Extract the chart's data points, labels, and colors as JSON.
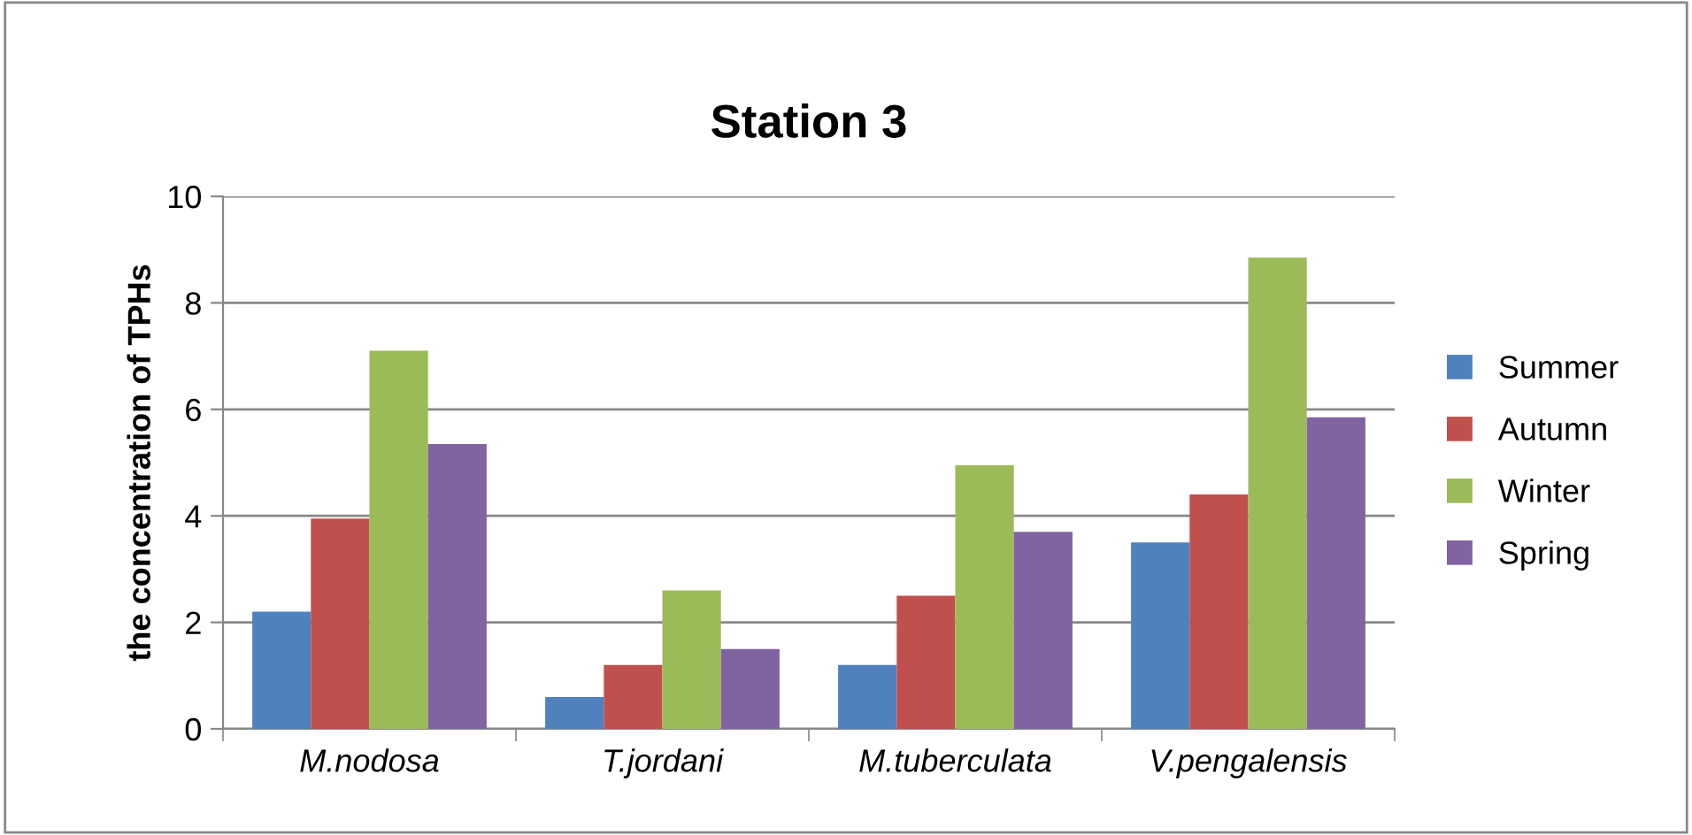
{
  "chart_data": {
    "type": "bar",
    "title": "Station 3",
    "ylabel": "the concentration of TPHs",
    "categories": [
      "M.nodosa",
      "T.jordani",
      "M.tuberculata",
      "V.pengalensis"
    ],
    "series": [
      {
        "name": "Summer",
        "color": "#4f81bd",
        "values": [
          2.2,
          0.6,
          1.2,
          3.5
        ]
      },
      {
        "name": "Autumn",
        "color": "#c0504d",
        "values": [
          3.95,
          1.2,
          2.5,
          4.4
        ]
      },
      {
        "name": "Winter",
        "color": "#9bbb59",
        "values": [
          7.1,
          2.6,
          4.95,
          8.85
        ]
      },
      {
        "name": "Spring",
        "color": "#8064a2",
        "values": [
          5.35,
          1.5,
          3.7,
          5.85
        ]
      }
    ],
    "ylim": [
      0,
      10
    ],
    "yticks": [
      0,
      2,
      4,
      6,
      8,
      10
    ],
    "grid": "y",
    "legend": "right"
  }
}
